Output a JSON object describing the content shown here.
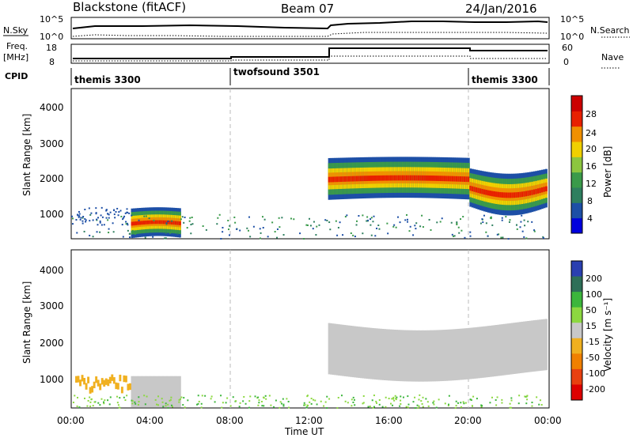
{
  "header": {
    "station": "Blackstone (fitACF)",
    "beam": "Beam 07",
    "date": "24/Jan/2016"
  },
  "panels": {
    "nsky": {
      "label": "N.Sky",
      "left_ticks": [
        "10^5",
        "10^0"
      ],
      "right_ticks": [
        "10^5",
        "10^0"
      ],
      "right_label": "N.Search"
    },
    "freq": {
      "label_top": "Freq.",
      "label_bottom": "[MHz]",
      "left_ticks": [
        "18",
        "8"
      ],
      "right_ticks": [
        "60",
        "0"
      ],
      "right_label": "Nave"
    },
    "cpid": {
      "label": "CPID",
      "segments": [
        "themis 3300",
        "twofsound 3501",
        "themis 3300"
      ]
    }
  },
  "power_colorbar": {
    "label": "Power [dB]",
    "ticks": [
      "28",
      "24",
      "20",
      "16",
      "12",
      "8",
      "4"
    ],
    "colors": [
      "#0000dd",
      "#1d4fa6",
      "#2e7f5f",
      "#3a9a4a",
      "#8cc63f",
      "#f0d000",
      "#f09000",
      "#e82000",
      "#cc0000"
    ]
  },
  "velocity_colorbar": {
    "label": "Velocity [m s⁻¹]",
    "ticks": [
      "200",
      "100",
      "50",
      "15",
      "-15",
      "-50",
      "-100",
      "-200"
    ],
    "colors": [
      "#2a3fb0",
      "#2e6f58",
      "#3cb63c",
      "#8cd840",
      "#c8c8c8",
      "#f0b020",
      "#f08000",
      "#e84010",
      "#dd0000"
    ]
  },
  "axes": {
    "ylabel": "Slant Range [km]",
    "yticks": [
      "1000",
      "2000",
      "3000",
      "4000"
    ],
    "xticks": [
      "00:00",
      "04:00",
      "08:00",
      "12:00",
      "16:00",
      "20:00",
      "00:00"
    ],
    "xlabel": "Time UT"
  },
  "chart_data": {
    "type": "heatmap",
    "title": "Blackstone (fitACF)",
    "xlabel": "Time UT",
    "ylabel": "Slant Range [km]",
    "xlim_hours": [
      0,
      24
    ],
    "ylim_km": [
      180,
      4500
    ],
    "cpid_segments": [
      {
        "name": "themis 3300",
        "start_h": 0,
        "end_h": 8
      },
      {
        "name": "twofsound 3501",
        "start_h": 8,
        "end_h": 20
      },
      {
        "name": "themis 3300",
        "start_h": 20,
        "end_h": 24
      }
    ],
    "power_echo_bands": [
      {
        "t_start": 3.0,
        "t_end": 5.5,
        "range_low": 200,
        "range_high": 1050,
        "peak_db": 28
      },
      {
        "t_start": 12.9,
        "t_end": 20.0,
        "range_low": 1300,
        "range_high": 2500,
        "peak_db": 26
      },
      {
        "t_start": 20.0,
        "t_end": 23.9,
        "range_low": 1100,
        "range_high": 2200,
        "peak_db": 26
      }
    ],
    "velocity_profile": [
      {
        "t_start": 3.0,
        "t_end": 5.5,
        "range_low": 200,
        "range_high": 1050,
        "velocity": 0
      },
      {
        "t_start": 12.9,
        "t_end": 23.9,
        "range_low": 1100,
        "range_high": 2500,
        "velocity": 0
      },
      {
        "t_start": 0.2,
        "t_end": 3.0,
        "range_low": 500,
        "range_high": 1100,
        "velocity": -60
      }
    ]
  }
}
